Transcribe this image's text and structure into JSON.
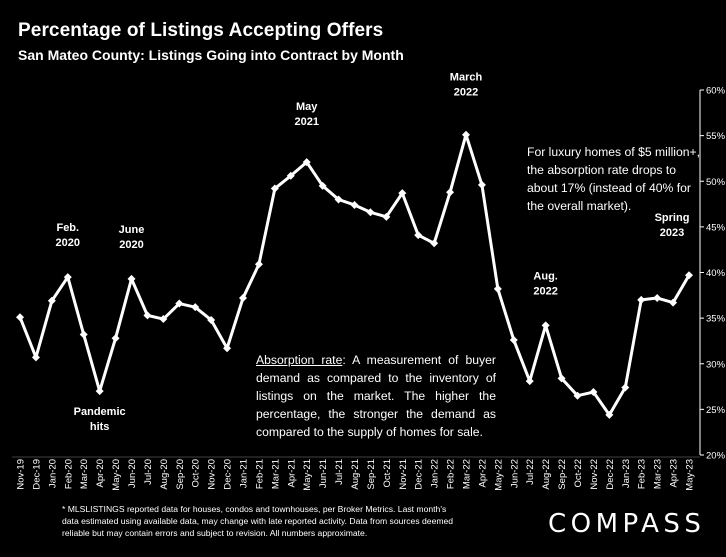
{
  "header": {
    "title": "Percentage of Listings Accepting Offers",
    "subtitle": "San Mateo County: Listings Going into Contract by Month"
  },
  "chart_data": {
    "type": "line",
    "title": "Percentage of Listings Accepting Offers",
    "subtitle": "San Mateo County: Listings Going into Contract by Month",
    "xlabel": "",
    "ylabel": "",
    "ylim": [
      20,
      60
    ],
    "y_ticks": [
      "20%",
      "25%",
      "30%",
      "35%",
      "40%",
      "45%",
      "50%",
      "55%",
      "60%"
    ],
    "y_axis_side": "right",
    "grid": false,
    "categories": [
      "Nov-19",
      "Dec-19",
      "Jan-20",
      "Feb-20",
      "Mar-20",
      "Apr-20",
      "May-20",
      "Jun-20",
      "Jul-20",
      "Aug-20",
      "Sep-20",
      "Oct-20",
      "Nov-20",
      "Dec-20",
      "Jan-21",
      "Feb-21",
      "Mar-21",
      "Apr-21",
      "May-21",
      "Jun-21",
      "Jul-21",
      "Aug-21",
      "Sep-21",
      "Oct-21",
      "Nov-21",
      "Dec-21",
      "Jan-22",
      "Feb-22",
      "Mar-22",
      "Apr-22",
      "May-22",
      "Jun-22",
      "Jul-22",
      "Aug-22",
      "Sep-22",
      "Oct-22",
      "Nov-22",
      "Dec-22",
      "Jan-23",
      "Feb-23",
      "Mar-23",
      "Apr-23",
      "May-23"
    ],
    "series": [
      {
        "values": [
          35.1,
          30.7,
          36.9,
          39.5,
          33.2,
          27.0,
          32.8,
          39.3,
          35.3,
          34.9,
          36.6,
          36.2,
          34.8,
          31.7,
          37.2,
          40.9,
          49.2,
          50.6,
          52.1,
          49.5,
          48.0,
          47.4,
          46.6,
          46.1,
          48.7,
          44.1,
          43.2,
          48.8,
          55.1,
          49.6,
          38.2,
          32.6,
          28.1,
          34.2,
          28.4,
          26.5,
          26.9,
          24.4,
          27.4,
          37.0,
          37.2,
          36.7,
          39.7
        ],
        "color": "#ffffff"
      }
    ],
    "annotations": [
      {
        "text": [
          "Feb.",
          "2020"
        ],
        "at": "Feb-20"
      },
      {
        "text": [
          "June",
          "2020"
        ],
        "at": "Jun-20"
      },
      {
        "text": [
          "Pandemic",
          "hits"
        ],
        "at": "Apr-20"
      },
      {
        "text": [
          "May",
          "2021"
        ],
        "at": "May-21"
      },
      {
        "text": [
          "March",
          "2022"
        ],
        "at": "Mar-22"
      },
      {
        "text": [
          "Aug.",
          "2022"
        ],
        "at": "Aug-22"
      },
      {
        "text": [
          "Spring",
          "2023"
        ],
        "at": "May-23"
      }
    ]
  },
  "notes": {
    "luxury": "For luxury homes of $5 million+, the absorption rate drops to about 17% (instead of 40% for the overall market).",
    "absorption_term": "Absorption rate",
    "absorption_body": ":  A measurement of buyer demand as compared to the inventory of listings on the market. The higher the percentage, the stronger the demand as compared to the supply of homes for sale."
  },
  "footnote": "* MLSLISTINGS reported data for houses, condos and townhouses, per Broker Metrics. Last month's data estimated using available data, may change with late reported activity. Data from sources deemed reliable but may contain errors and subject to revision. All numbers approximate.",
  "brand": {
    "logo": "COMPASS"
  }
}
